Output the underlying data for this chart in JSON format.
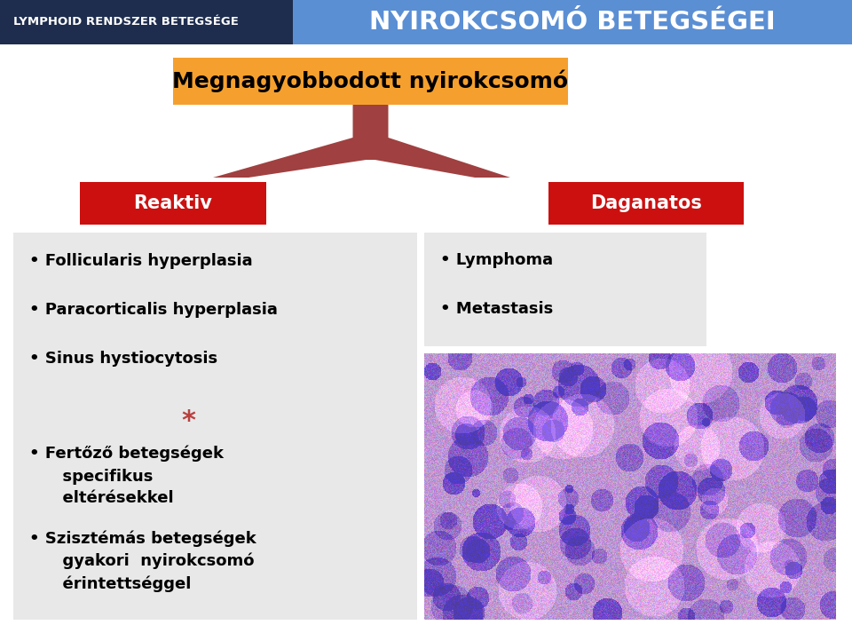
{
  "header_left_text": "LYMPHOID RENDSZER BETEGSÉGE",
  "header_left_bg": "#1e2d4e",
  "header_right_text": "NYIROKCSOMÓ BETEGSÉGEI",
  "header_right_bg": "#5b8fd4",
  "header_text_color": "#ffffff",
  "main_box_text": "Megnagyobbodott nyirokcsomó",
  "main_box_bg": "#f5a02e",
  "main_box_text_color": "#000000",
  "reaktiv_text": "Reaktiv",
  "reaktiv_bg": "#cc1010",
  "daganatos_text": "Daganatos",
  "daganatos_bg": "#cc1010",
  "left_panel_bg": "#e8e8e8",
  "right_panel_bg": "#e8e8e8",
  "left_bullet_items": [
    "Follicularis hyperplasia",
    "Paracorticalis hyperplasia",
    "Sinus hystiocytosis"
  ],
  "asterisk": "*",
  "asterisk_color": "#b94040",
  "left_bullet_items2": [
    "Fertőző betegségek\n      specifikus\n      eltérésekkel",
    "Szisztémás betegségek\n      gyakori  nyirokcsomó\n      érintettséggel"
  ],
  "right_bullet_items": [
    "Lymphoma",
    "Metastasis"
  ],
  "arrow_color": "#a04040",
  "bg_color": "#ffffff"
}
